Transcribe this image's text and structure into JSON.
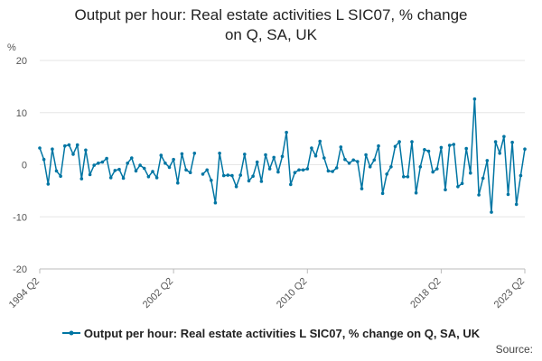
{
  "title_line1": "Output per hour: Real estate activities L SIC07, % change",
  "title_line2": "on Q, SA, UK",
  "source_label": "Source:",
  "colors": {
    "series": "#0075a3",
    "grid": "#e6e6e6",
    "axis": "#bbbbbb"
  },
  "chart_data": {
    "type": "line",
    "title": "Output per hour: Real estate activities L SIC07, % change on Q, SA, UK",
    "yunit": "%",
    "ylim": [
      -20,
      20
    ],
    "yticks": [
      20,
      10,
      0,
      -10,
      -20
    ],
    "xtick_labels": [
      "1994 Q2",
      "2002 Q2",
      "2010 Q2",
      "2018 Q2",
      "2023 Q2"
    ],
    "grid": true,
    "legend": "bottom",
    "series": [
      {
        "name": "Output per hour: Real estate activities L SIC07, % change on Q, SA, UK",
        "x": [
          "1994 Q2",
          "1994 Q3",
          "1994 Q4",
          "1995 Q1",
          "1995 Q2",
          "1995 Q3",
          "1995 Q4",
          "1996 Q1",
          "1996 Q2",
          "1996 Q3",
          "1996 Q4",
          "1997 Q1",
          "1997 Q2",
          "1997 Q3",
          "1997 Q4",
          "1998 Q1",
          "1998 Q2",
          "1998 Q3",
          "1998 Q4",
          "1999 Q1",
          "1999 Q2",
          "1999 Q3",
          "1999 Q4",
          "2000 Q1",
          "2000 Q2",
          "2000 Q3",
          "2000 Q4",
          "2001 Q1",
          "2001 Q2",
          "2001 Q3",
          "2001 Q4",
          "2002 Q1",
          "2002 Q2",
          "2002 Q3",
          "2002 Q4",
          "2003 Q1",
          "2003 Q2",
          "2003 Q3",
          "2003 Q4",
          "2004 Q1",
          "2004 Q2",
          "2004 Q3",
          "2004 Q4",
          "2005 Q1",
          "2005 Q2",
          "2005 Q3",
          "2005 Q4",
          "2006 Q1",
          "2006 Q2",
          "2006 Q3",
          "2006 Q4",
          "2007 Q1",
          "2007 Q2",
          "2007 Q3",
          "2007 Q4",
          "2008 Q1",
          "2008 Q2",
          "2008 Q3",
          "2008 Q4",
          "2009 Q1",
          "2009 Q2",
          "2009 Q3",
          "2009 Q4",
          "2010 Q1",
          "2010 Q2",
          "2010 Q3",
          "2010 Q4",
          "2011 Q1",
          "2011 Q2",
          "2011 Q3",
          "2011 Q4",
          "2012 Q1",
          "2012 Q2",
          "2012 Q3",
          "2012 Q4",
          "2013 Q1",
          "2013 Q2",
          "2013 Q3",
          "2013 Q4",
          "2014 Q1",
          "2014 Q2",
          "2014 Q3",
          "2014 Q4",
          "2015 Q1",
          "2015 Q2",
          "2015 Q3",
          "2015 Q4",
          "2016 Q1",
          "2016 Q2",
          "2016 Q3",
          "2016 Q4",
          "2017 Q1",
          "2017 Q2",
          "2017 Q3",
          "2017 Q4",
          "2018 Q1",
          "2018 Q2",
          "2018 Q3",
          "2018 Q4",
          "2019 Q1",
          "2019 Q2",
          "2019 Q3",
          "2019 Q4",
          "2020 Q1",
          "2020 Q2",
          "2020 Q3",
          "2020 Q4",
          "2021 Q1",
          "2021 Q2",
          "2021 Q3",
          "2021 Q4",
          "2022 Q1",
          "2022 Q2",
          "2022 Q3",
          "2022 Q4",
          "2023 Q1",
          "2023 Q2"
        ],
        "values": [
          3.2,
          1.0,
          -3.7,
          3.0,
          -1.2,
          -2.2,
          3.6,
          3.8,
          2.0,
          3.8,
          -2.7,
          2.8,
          -1.9,
          -0.1,
          0.3,
          0.5,
          1.2,
          -2.5,
          -1.1,
          -0.9,
          -2.6,
          0.3,
          1.3,
          -1.2,
          -0.1,
          -0.7,
          -2.3,
          -1.3,
          -2.5,
          1.8,
          0.3,
          -0.5,
          1.0,
          -3.5,
          2.1,
          -1.0,
          -1.5,
          2.2,
          null,
          -1.8,
          -1.0,
          -3.0,
          -7.3,
          2.2,
          -2.1,
          -2.0,
          -2.1,
          -4.2,
          -2.0,
          2.0,
          -3.1,
          -2.2,
          0.5,
          -3.2,
          1.9,
          -0.8,
          1.4,
          -1.4,
          1.6,
          6.2,
          -3.8,
          -1.5,
          -1.0,
          -1.0,
          -0.8,
          3.2,
          1.7,
          4.5,
          1.3,
          -1.2,
          -1.3,
          -0.6,
          3.4,
          1.0,
          0.3,
          0.9,
          0.6,
          -4.6,
          1.9,
          -0.4,
          0.9,
          3.6,
          -5.5,
          -1.8,
          -0.4,
          3.5,
          4.4,
          -2.3,
          -2.3,
          4.4,
          -5.4,
          -0.4,
          2.9,
          2.6,
          -1.4,
          -0.8,
          3.3,
          -4.8,
          3.7,
          3.9,
          -4.2,
          -3.6,
          3.1,
          -1.6,
          12.6,
          -5.8,
          -2.6,
          0.8,
          -9.1,
          4.4,
          2.2,
          5.4,
          -5.7,
          4.3,
          -7.6,
          -2.1,
          3.0
        ]
      }
    ]
  }
}
